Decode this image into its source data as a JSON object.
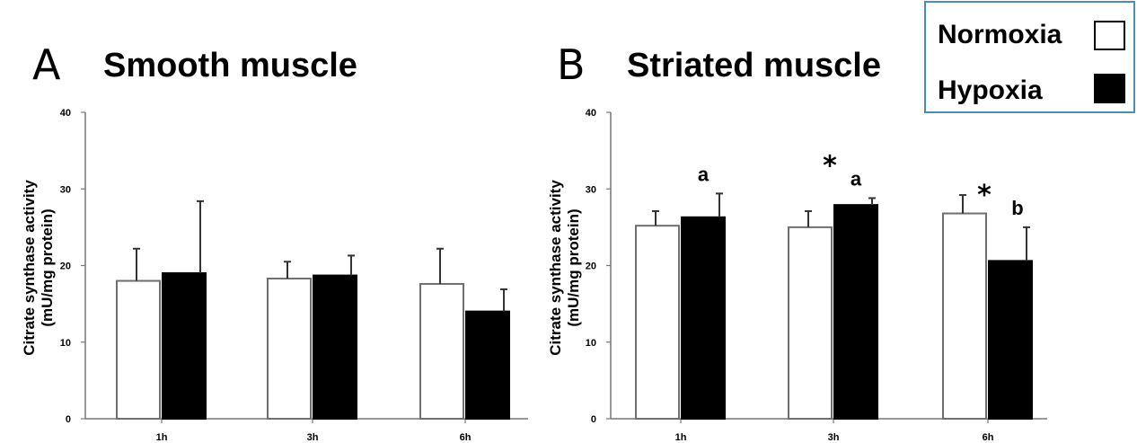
{
  "legend": {
    "items": [
      {
        "label": "Normoxia",
        "fill": "#ffffff"
      },
      {
        "label": "Hypoxia",
        "fill": "#000000"
      }
    ]
  },
  "chart_data": [
    {
      "type": "bar",
      "panel": "A",
      "title": "Smooth muscle",
      "ylabel": [
        "Citrate synthase activity",
        "(mU/mg protein)"
      ],
      "ylim": [
        0,
        40
      ],
      "yticks": [
        0,
        10,
        20,
        30,
        40
      ],
      "categories": [
        "1h",
        "3h",
        "6h"
      ],
      "series": [
        {
          "name": "Normoxia",
          "color": "#ffffff",
          "values": [
            18.0,
            18.3,
            17.6
          ],
          "errors": [
            4.2,
            2.2,
            4.6
          ]
        },
        {
          "name": "Hypoxia",
          "color": "#000000",
          "values": [
            19.0,
            18.7,
            14.0
          ],
          "errors": [
            9.4,
            2.6,
            2.9
          ]
        }
      ],
      "annotations": []
    },
    {
      "type": "bar",
      "panel": "B",
      "title": "Striated muscle",
      "ylabel": [
        "Citrate synthase activity",
        "(mU/mg protein)"
      ],
      "ylim": [
        0,
        40
      ],
      "yticks": [
        0,
        10,
        20,
        30,
        40
      ],
      "categories": [
        "1h",
        "3h",
        "6h"
      ],
      "series": [
        {
          "name": "Normoxia",
          "color": "#ffffff",
          "values": [
            25.2,
            25.0,
            26.8
          ],
          "errors": [
            1.9,
            2.1,
            2.4
          ]
        },
        {
          "name": "Hypoxia",
          "color": "#000000",
          "values": [
            26.3,
            27.9,
            20.6
          ],
          "errors": [
            3.1,
            0.9,
            4.4
          ]
        }
      ],
      "annotations": [
        {
          "category": 0,
          "text": "a"
        },
        {
          "category": 1,
          "star": "*",
          "text": "a"
        },
        {
          "category": 2,
          "star": "*",
          "text": "b"
        }
      ]
    }
  ]
}
